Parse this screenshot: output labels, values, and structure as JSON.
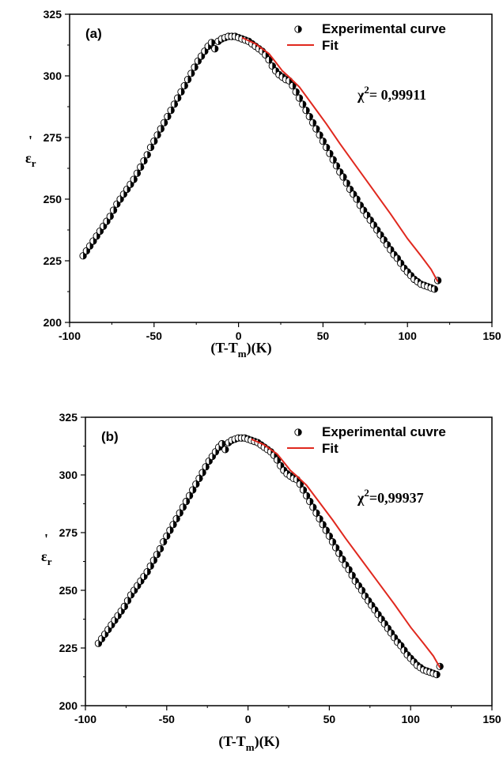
{
  "chart_data": [
    {
      "type": "scatter",
      "panel_label": "(a)",
      "xlabel": {
        "main": "(T-T",
        "sub": "m",
        "tail": ")(K)"
      },
      "ylabel": {
        "main": "ε",
        "sub": "r",
        "prime": "'"
      },
      "xlim": [
        -100,
        150
      ],
      "ylim": [
        200,
        325
      ],
      "xticks": [
        -100,
        -50,
        0,
        50,
        100,
        150
      ],
      "yticks": [
        200,
        225,
        250,
        275,
        300,
        325
      ],
      "grid": false,
      "legend_position": "top-right",
      "annotation": {
        "chi": "χ",
        "sup": "2",
        "text": "= 0,99911"
      },
      "series": [
        {
          "name": "Experimental curve",
          "marker": "half-filled-circle",
          "color": "#000000",
          "x": [
            -92,
            -90,
            -88,
            -86,
            -84,
            -82,
            -80,
            -78,
            -76,
            -74,
            -72,
            -70,
            -68,
            -66,
            -64,
            -62,
            -60,
            -58,
            -56,
            -54,
            -52,
            -50,
            -48,
            -46,
            -44,
            -42,
            -40,
            -38,
            -36,
            -34,
            -32,
            -30,
            -28,
            -26,
            -24,
            -22,
            -20,
            -18,
            -16,
            -14,
            -12,
            -10,
            -8,
            -6,
            -4,
            -2,
            0,
            2,
            4,
            6,
            8,
            10,
            12,
            14,
            16,
            18,
            20,
            22,
            24,
            26,
            28,
            30,
            32,
            34,
            36,
            38,
            40,
            42,
            44,
            46,
            48,
            50,
            52,
            54,
            56,
            58,
            60,
            62,
            64,
            66,
            68,
            70,
            72,
            74,
            76,
            78,
            80,
            82,
            84,
            86,
            88,
            90,
            92,
            94,
            96,
            98,
            100,
            102,
            104,
            106,
            108,
            110,
            112,
            114,
            116,
            118
          ],
          "y": [
            227,
            229,
            231,
            233,
            235,
            237,
            239,
            241,
            243,
            245.5,
            248,
            250,
            252,
            254,
            256,
            258,
            260.5,
            263,
            265.5,
            268,
            271,
            273.5,
            276,
            278.5,
            281,
            283.5,
            286,
            288.5,
            291,
            293.5,
            296,
            298.5,
            301,
            303.5,
            306,
            308,
            310,
            312,
            313.5,
            311,
            314,
            315,
            315.5,
            316,
            316,
            316,
            315.5,
            315,
            314.5,
            314,
            313,
            312,
            311,
            310,
            308.5,
            306.5,
            304,
            302,
            300.5,
            299.5,
            298.5,
            298,
            296,
            293.5,
            291,
            288.5,
            286,
            283.5,
            281,
            278.5,
            276,
            273.5,
            271,
            268.5,
            266,
            263.5,
            261,
            259,
            256.5,
            254,
            252,
            250,
            247.5,
            245.5,
            243.5,
            241.5,
            239.5,
            237.5,
            235.5,
            233.5,
            231.5,
            229.5,
            227.5,
            226,
            224,
            222,
            220.5,
            219,
            217.5,
            216.5,
            215.5,
            215,
            214.5,
            214,
            213.5,
            217
          ]
        },
        {
          "name": "Fit",
          "marker": "line",
          "color": "#e0281e",
          "x": [
            2,
            10,
            18,
            22,
            26,
            30,
            36,
            44,
            52,
            60,
            70,
            80,
            90,
            100,
            108,
            114,
            118
          ],
          "y": [
            315.5,
            313,
            309,
            305.5,
            302,
            299.5,
            295.5,
            288,
            280.5,
            272.5,
            263,
            253.5,
            244,
            234,
            227,
            221.5,
            216.5
          ]
        }
      ]
    },
    {
      "type": "scatter",
      "panel_label": "(b)",
      "xlabel": {
        "main": "(T-T",
        "sub": "m",
        "tail": ")(K)"
      },
      "ylabel": {
        "main": "ε",
        "sub": "r",
        "prime": "'"
      },
      "xlim": [
        -100,
        150
      ],
      "ylim": [
        200,
        325
      ],
      "xticks": [
        -100,
        -50,
        0,
        50,
        100,
        150
      ],
      "yticks": [
        200,
        225,
        250,
        275,
        300,
        325
      ],
      "grid": false,
      "legend_position": "top-right",
      "annotation": {
        "chi": "χ",
        "sup": "2",
        "text": "=0,99937"
      },
      "series": [
        {
          "name": "Experimental cuvre",
          "marker": "half-filled-circle",
          "color": "#000000",
          "x": [
            -92,
            -90,
            -88,
            -86,
            -84,
            -82,
            -80,
            -78,
            -76,
            -74,
            -72,
            -70,
            -68,
            -66,
            -64,
            -62,
            -60,
            -58,
            -56,
            -54,
            -52,
            -50,
            -48,
            -46,
            -44,
            -42,
            -40,
            -38,
            -36,
            -34,
            -32,
            -30,
            -28,
            -26,
            -24,
            -22,
            -20,
            -18,
            -16,
            -14,
            -12,
            -10,
            -8,
            -6,
            -4,
            -2,
            0,
            2,
            4,
            6,
            8,
            10,
            12,
            14,
            16,
            18,
            20,
            22,
            24,
            26,
            28,
            30,
            32,
            34,
            36,
            38,
            40,
            42,
            44,
            46,
            48,
            50,
            52,
            54,
            56,
            58,
            60,
            62,
            64,
            66,
            68,
            70,
            72,
            74,
            76,
            78,
            80,
            82,
            84,
            86,
            88,
            90,
            92,
            94,
            96,
            98,
            100,
            102,
            104,
            106,
            108,
            110,
            112,
            114,
            116,
            118
          ],
          "y": [
            227,
            229,
            231,
            233,
            235,
            237,
            239,
            241,
            243,
            245.5,
            248,
            250,
            252,
            254,
            256,
            258,
            260.5,
            263,
            265.5,
            268,
            271,
            273.5,
            276,
            278.5,
            281,
            283.5,
            286,
            288.5,
            291,
            293.5,
            296,
            298.5,
            301,
            303.5,
            306,
            308,
            310,
            312,
            313.5,
            311,
            314,
            315,
            315.5,
            316,
            316,
            316,
            315.5,
            315,
            314.5,
            314,
            313,
            312,
            311,
            310,
            308.5,
            306.5,
            304,
            302,
            300.5,
            299.5,
            298.5,
            298,
            296,
            293.5,
            291,
            288.5,
            286,
            283.5,
            281,
            278.5,
            276,
            273.5,
            271,
            268.5,
            266,
            263.5,
            261,
            259,
            256.5,
            254,
            252,
            250,
            247.5,
            245.5,
            243.5,
            241.5,
            239.5,
            237.5,
            235.5,
            233.5,
            231.5,
            229.5,
            227.5,
            226,
            224,
            222,
            220.5,
            219,
            217.5,
            216.5,
            215.5,
            215,
            214.5,
            214,
            213.5,
            217
          ]
        },
        {
          "name": "Fit",
          "marker": "line",
          "color": "#e0281e",
          "x": [
            2,
            10,
            18,
            22,
            26,
            30,
            36,
            44,
            52,
            60,
            70,
            80,
            90,
            100,
            108,
            114,
            118
          ],
          "y": [
            315.5,
            313,
            309,
            305.5,
            302,
            299.5,
            295.5,
            288,
            280.5,
            272.5,
            263,
            253.5,
            244,
            234,
            227,
            221.5,
            216.5
          ]
        }
      ]
    }
  ]
}
